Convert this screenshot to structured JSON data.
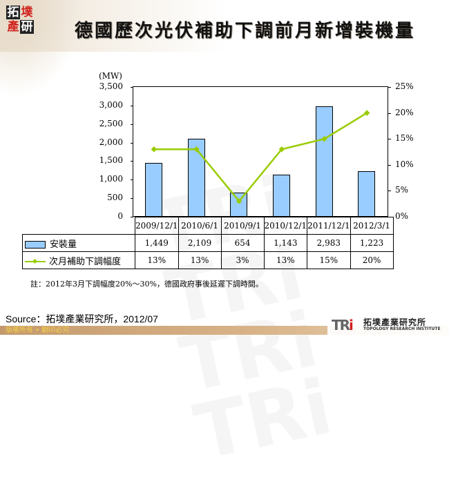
{
  "header": {
    "logo_chars": [
      "拓",
      "墣",
      "產",
      "研"
    ],
    "title": "德國歷次光伏補助下調前月新增裝機量"
  },
  "chart_data": {
    "type": "bar+line",
    "title": "德國歷次光伏補助下調前月新增裝機量",
    "categories": [
      "2009/12/1",
      "2010/6/1",
      "2010/9/1",
      "2010/12/1",
      "2011/12/1",
      "2012/3/1"
    ],
    "series": [
      {
        "name": "安裝量",
        "type": "bar",
        "axis": "left",
        "color": "#99ccff",
        "values": [
          1449,
          2109,
          654,
          1143,
          2983,
          1223
        ],
        "labels": [
          "1,449",
          "2,109",
          "654",
          "1,143",
          "2,983",
          "1,223"
        ]
      },
      {
        "name": "次月補助下調幅度",
        "type": "line",
        "axis": "right",
        "color": "#99cc00",
        "values": [
          13,
          13,
          3,
          13,
          15,
          20
        ],
        "labels": [
          "13%",
          "13%",
          "3%",
          "13%",
          "15%",
          "20%"
        ]
      }
    ],
    "ylabel_left": "(MW)",
    "ylim_left": [
      0,
      3500
    ],
    "yticks_left": [
      "3,500",
      "3,000",
      "2,500",
      "2,000",
      "1,500",
      "1,000",
      "500",
      "0"
    ],
    "ylim_right": [
      0,
      25
    ],
    "yticks_right": [
      "25%",
      "20%",
      "15%",
      "10%",
      "5%",
      "0%"
    ],
    "grid": false,
    "legend_position": "data-table"
  },
  "note": "註：2012年3月下調幅度20%～30%，德國政府事後延遲下調時間。",
  "source": "Source：拓墣產業研究所，2012/07",
  "footer": {
    "copyright": "版權所有 • 翻印必究",
    "brand_mark": "TRi",
    "brand_cn": "拓墣產業研究所",
    "brand_en": "TOPOLOGY RESEARCH INSTITUTE"
  }
}
